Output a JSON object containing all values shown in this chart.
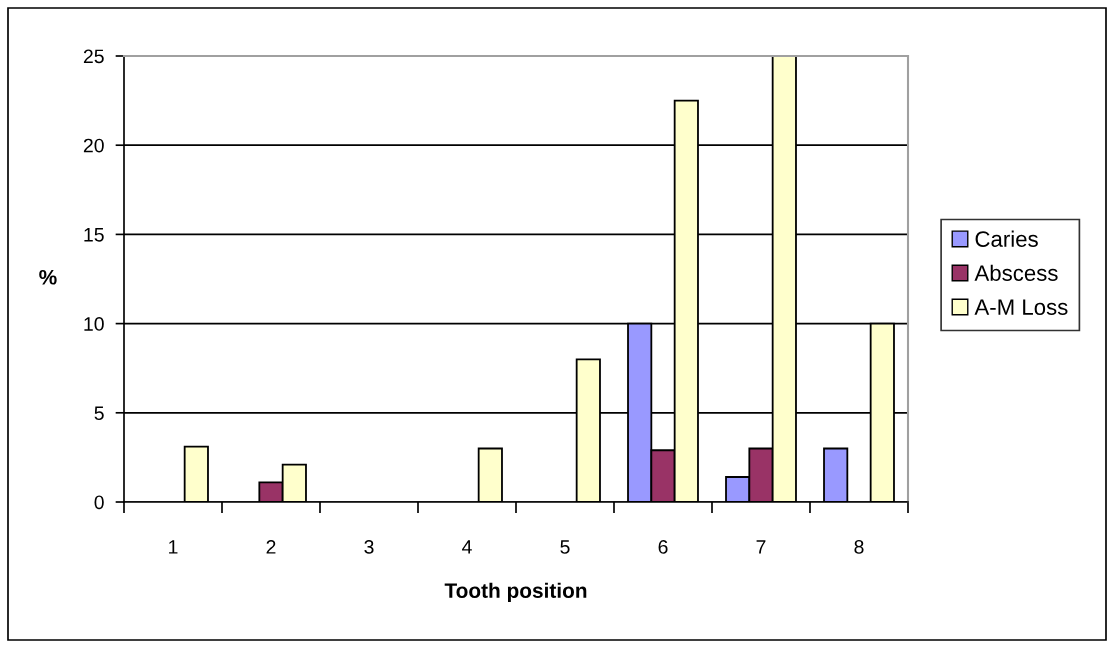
{
  "chart_data": {
    "type": "bar",
    "xlabel": "Tooth position",
    "ylabel": "%",
    "categories": [
      "1",
      "2",
      "3",
      "4",
      "5",
      "6",
      "7",
      "8"
    ],
    "series": [
      {
        "name": "Caries",
        "color": "#9999ff",
        "values": [
          null,
          null,
          null,
          null,
          null,
          10,
          1.4,
          3
        ]
      },
      {
        "name": "Abscess",
        "color": "#993366",
        "values": [
          null,
          1.1,
          null,
          null,
          null,
          2.9,
          3,
          null
        ]
      },
      {
        "name": "A-M Loss",
        "color": "#ffffcc",
        "values": [
          3.1,
          2.1,
          null,
          3,
          8,
          22.5,
          25,
          10
        ]
      }
    ],
    "ylim": [
      0,
      25
    ],
    "yticks": [
      0,
      5,
      10,
      15,
      20,
      25
    ],
    "grid": "y",
    "legend": "right"
  }
}
